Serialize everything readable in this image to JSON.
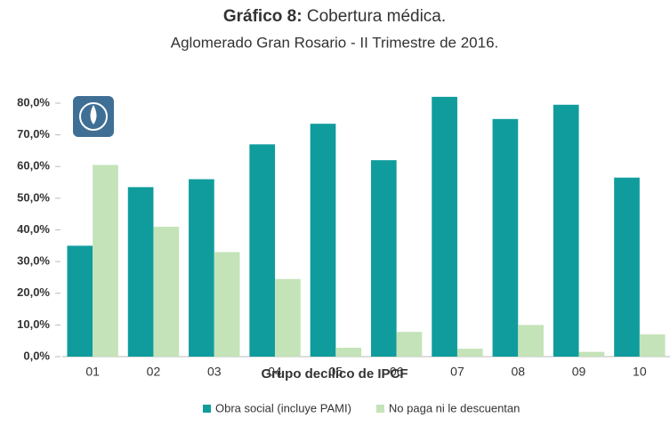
{
  "chart_data": {
    "type": "bar",
    "title_prefix": "Gráfico 8:",
    "title": "Cobertura médica.",
    "subtitle": "Aglomerado Gran Rosario - II Trimestre de 2016.",
    "xlabel": "Grupo decílico de IPCF",
    "categories": [
      "01",
      "02",
      "03",
      "04",
      "05",
      "06",
      "07",
      "08",
      "09",
      "10"
    ],
    "series": [
      {
        "name": "Obra social (incluye PAMI)",
        "color": "#109c9c",
        "values": [
          35,
          53.5,
          56,
          67,
          73.5,
          62,
          82,
          75,
          79.5,
          56.5
        ]
      },
      {
        "name": "No paga ni le descuentan",
        "color": "#c4e3b8",
        "values": [
          60.5,
          41,
          33,
          24.5,
          2.8,
          7.8,
          2.5,
          10,
          1.5,
          7
        ]
      }
    ],
    "ylim": [
      0,
      80
    ],
    "yticks": [
      {
        "value": 0,
        "label": "0,0%"
      },
      {
        "value": 10,
        "label": "10,0%"
      },
      {
        "value": 20,
        "label": "20,0%"
      },
      {
        "value": 30,
        "label": "30,0%"
      },
      {
        "value": 40,
        "label": "40,0%"
      },
      {
        "value": 50,
        "label": "50,0%"
      },
      {
        "value": 60,
        "label": "60,0%"
      },
      {
        "value": 70,
        "label": "70,0%"
      },
      {
        "value": 80,
        "label": "80,0%"
      }
    ],
    "legend": "bottom"
  }
}
